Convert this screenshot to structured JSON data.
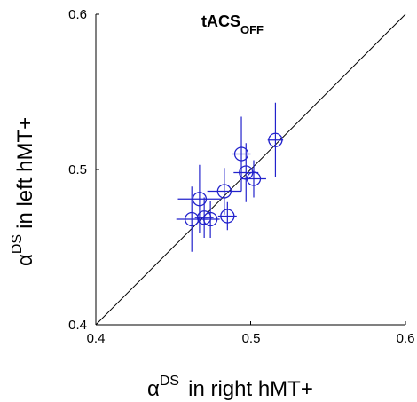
{
  "chart_data": {
    "type": "scatter",
    "title": {
      "main": "tACS",
      "subscript": "OFF"
    },
    "xlabel": {
      "symbol": "α",
      "superscript": "DS",
      "text": "in right hMT+"
    },
    "ylabel": {
      "symbol": "α",
      "superscript": "DS",
      "text": "in left hMT+"
    },
    "xlim": [
      0.4,
      0.6
    ],
    "ylim": [
      0.4,
      0.6
    ],
    "xticks": [
      "0.4",
      "0.5",
      "0.6"
    ],
    "yticks": [
      "0.4",
      "0.5",
      "0.6"
    ],
    "grid": false,
    "identity_line": true,
    "marker": "open-circle",
    "color": "#2222cc",
    "points": [
      {
        "x": 0.462,
        "y": 0.468,
        "xerr": 0.01,
        "yerr": 0.021
      },
      {
        "x": 0.467,
        "y": 0.481,
        "xerr": 0.014,
        "yerr": 0.022
      },
      {
        "x": 0.47,
        "y": 0.469,
        "xerr": 0.006,
        "yerr": 0.013
      },
      {
        "x": 0.474,
        "y": 0.468,
        "xerr": 0.006,
        "yerr": 0.012
      },
      {
        "x": 0.483,
        "y": 0.486,
        "xerr": 0.011,
        "yerr": 0.015
      },
      {
        "x": 0.485,
        "y": 0.47,
        "xerr": 0.006,
        "yerr": 0.009
      },
      {
        "x": 0.494,
        "y": 0.51,
        "xerr": 0.006,
        "yerr": 0.024
      },
      {
        "x": 0.497,
        "y": 0.498,
        "xerr": 0.008,
        "yerr": 0.019
      },
      {
        "x": 0.502,
        "y": 0.494,
        "xerr": 0.008,
        "yerr": 0.012
      },
      {
        "x": 0.516,
        "y": 0.519,
        "xerr": 0.005,
        "yerr": 0.024
      }
    ]
  }
}
